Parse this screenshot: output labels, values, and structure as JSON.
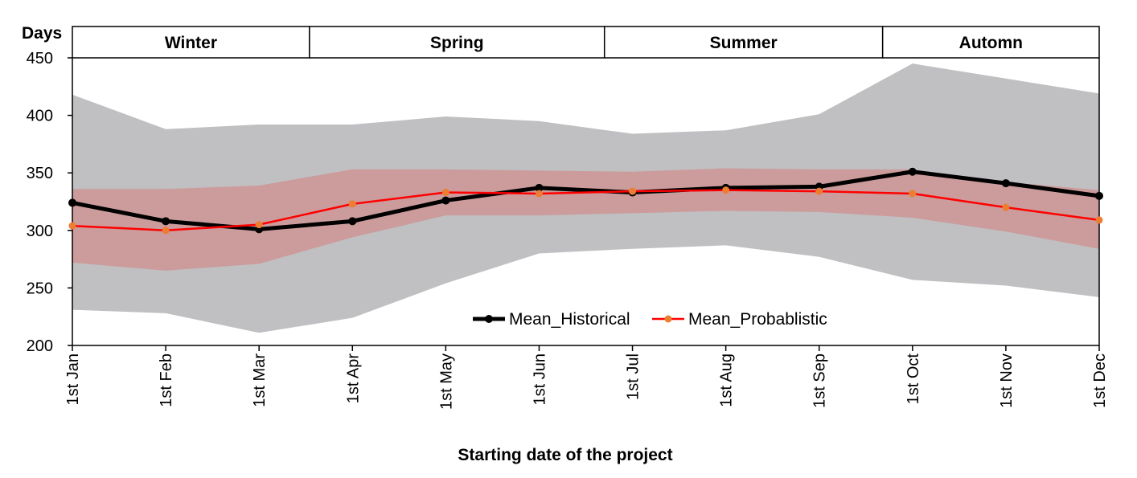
{
  "chart_data": {
    "type": "line",
    "categories": [
      "1st Jan",
      "1st Feb",
      "1st Mar",
      "1st Apr",
      "1st May",
      "1st Jun",
      "1st Jul",
      "1st Aug",
      "1st Sep",
      "1st Oct",
      "1st Nov",
      "1st Dec"
    ],
    "ylabel": "Days",
    "xlabel": "Starting date of the project",
    "ylim": [
      200,
      450
    ],
    "yticks": [
      200,
      250,
      300,
      350,
      400,
      450
    ],
    "grid": false,
    "legend_position": "bottom-center",
    "seasons": [
      {
        "label": "Winter",
        "start": 0,
        "end": 2.54
      },
      {
        "label": "Spring",
        "start": 2.54,
        "end": 5.7
      },
      {
        "label": "Summer",
        "start": 5.7,
        "end": 8.68
      },
      {
        "label": "Automn",
        "start": 8.68,
        "end": 11
      }
    ],
    "bands": [
      {
        "color": "#c0bfc1",
        "upper": [
          418,
          388,
          392,
          392,
          399,
          395,
          384,
          387,
          401,
          445,
          432,
          419
        ],
        "lower": [
          231,
          228,
          211,
          224,
          254,
          280,
          284,
          287,
          277,
          257,
          252,
          242
        ]
      },
      {
        "color": "#cc9b9b",
        "upper": [
          336,
          336,
          339,
          353,
          353,
          352,
          351,
          354,
          353,
          353,
          342,
          335
        ],
        "lower": [
          272,
          265,
          271,
          294,
          313,
          313,
          315,
          317,
          316,
          311,
          299,
          284
        ]
      }
    ],
    "series": [
      {
        "name": "Mean_Historical",
        "color": "#000000",
        "marker_color": "#000000",
        "values": [
          324,
          308,
          301,
          308,
          326,
          337,
          333,
          337,
          338,
          351,
          341,
          330
        ]
      },
      {
        "name": "Mean_Probablistic",
        "color": "#ff0000",
        "marker_color": "#ed7d31",
        "values": [
          304,
          300,
          305,
          323,
          333,
          332,
          334,
          335,
          334,
          332,
          320,
          309
        ]
      }
    ]
  }
}
